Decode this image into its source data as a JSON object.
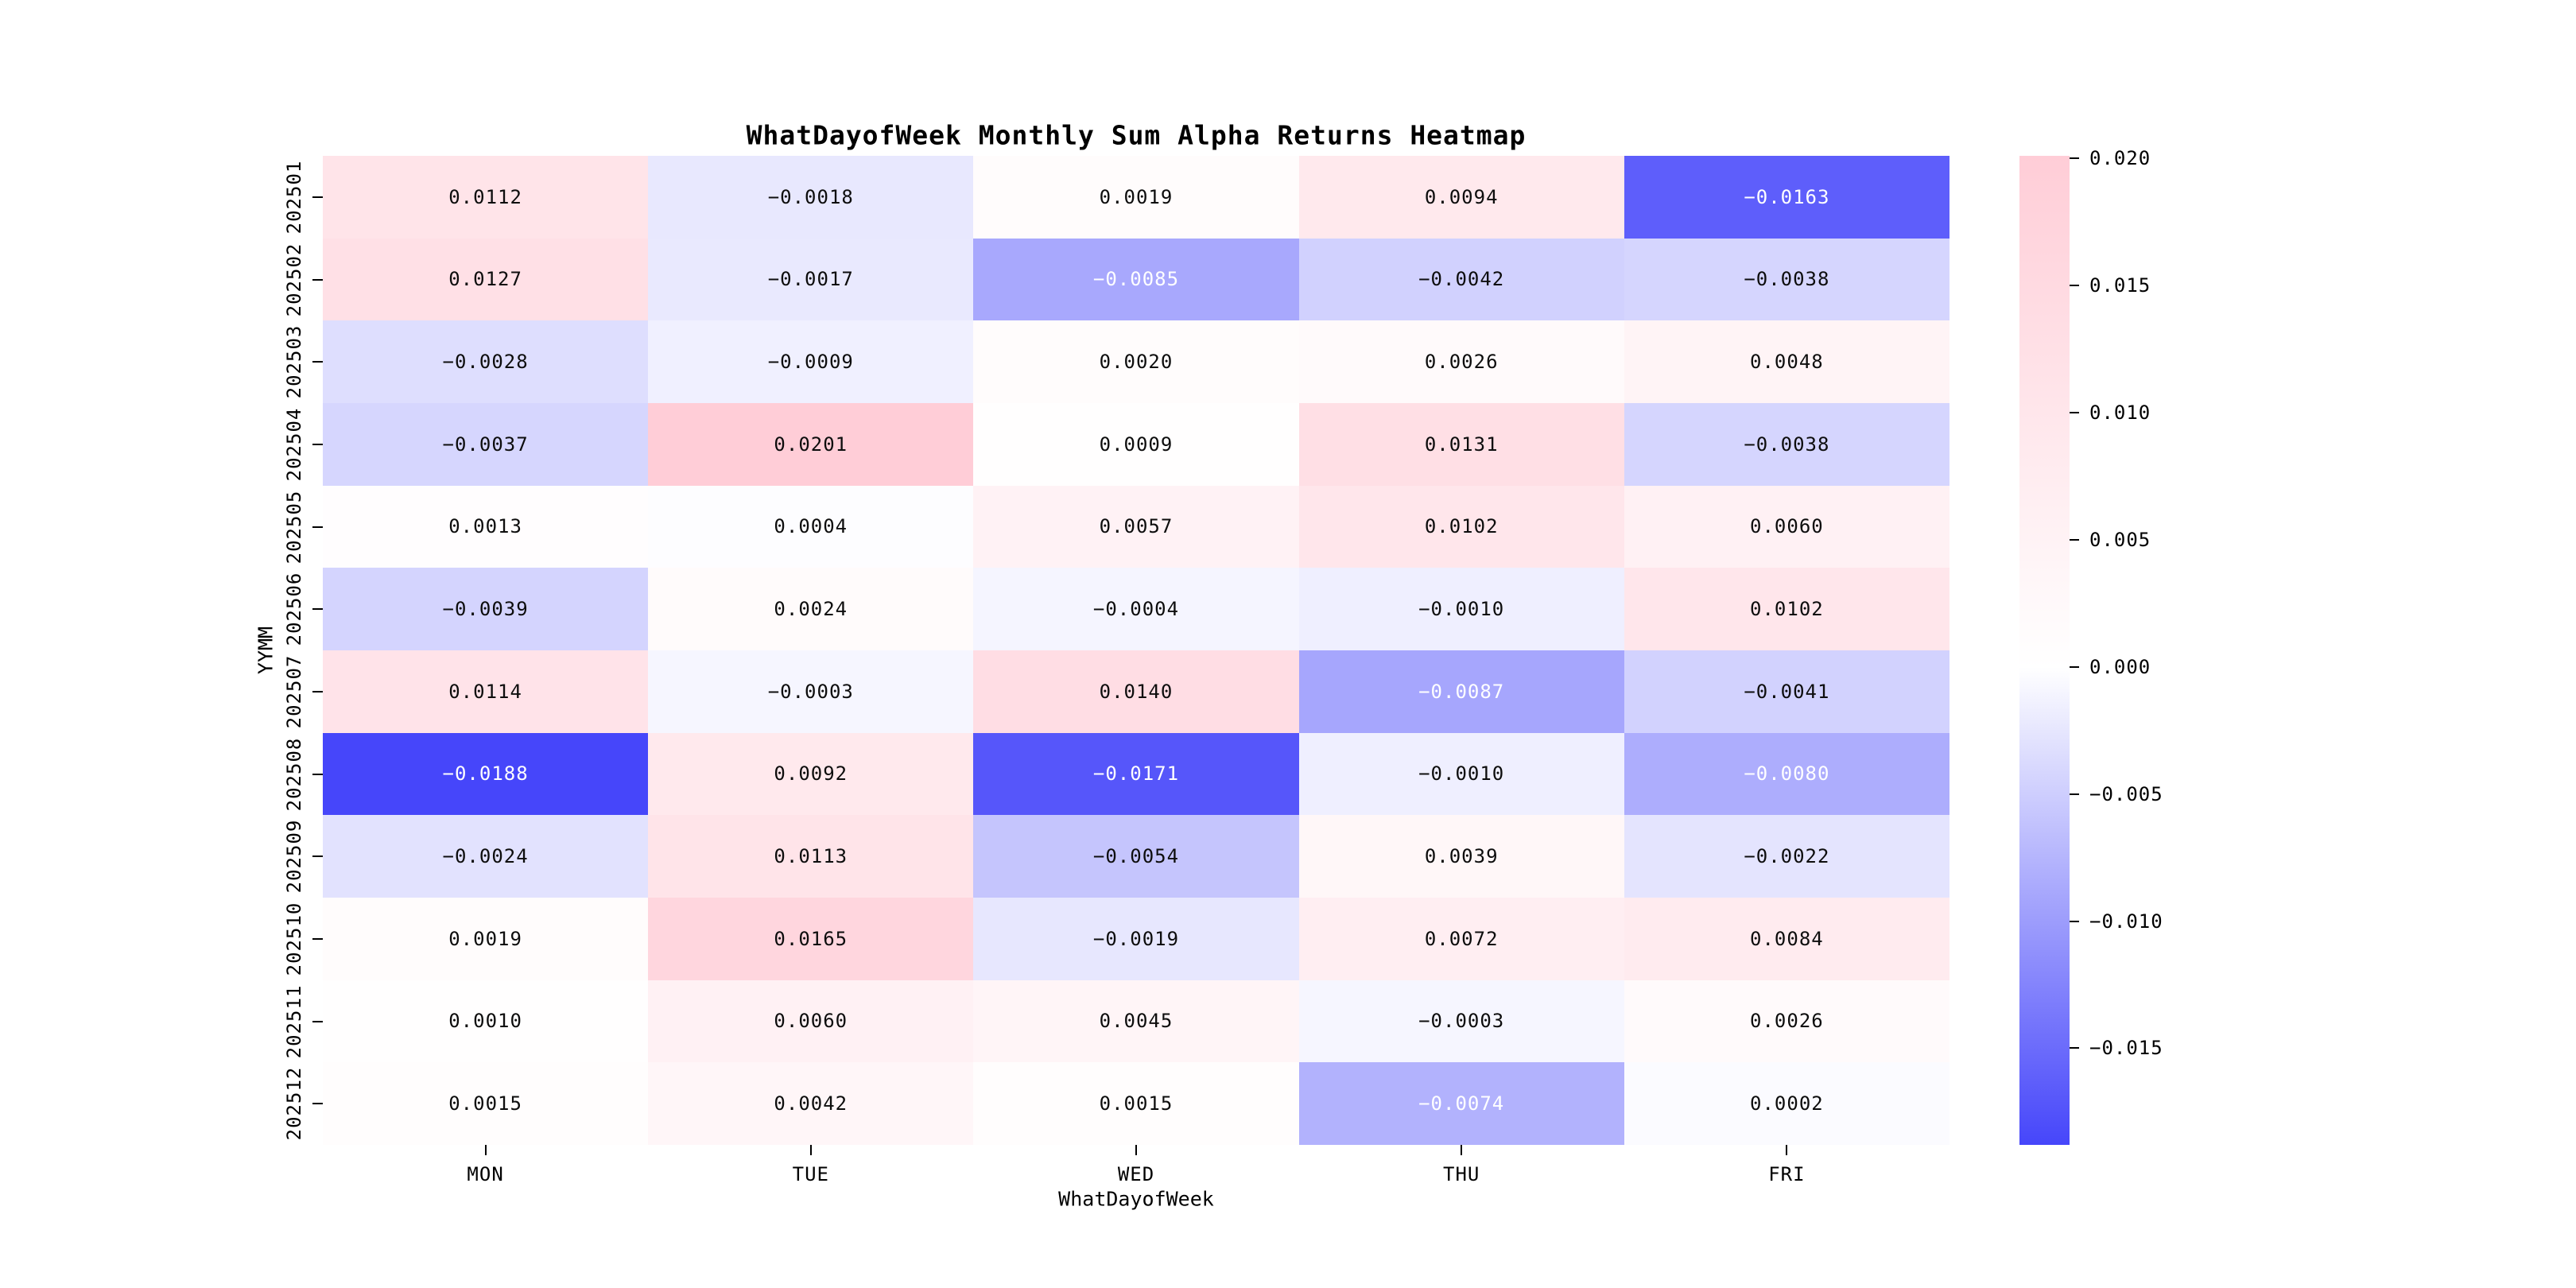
{
  "chart_data": {
    "type": "heatmap",
    "title": "WhatDayofWeek Monthly Sum Alpha Returns Heatmap",
    "xlabel": "WhatDayofWeek",
    "ylabel": "YYMM",
    "x_categories": [
      "MON",
      "TUE",
      "WED",
      "THU",
      "FRI"
    ],
    "y_categories": [
      "202501",
      "202502",
      "202503",
      "202504",
      "202505",
      "202506",
      "202507",
      "202508",
      "202509",
      "202510",
      "202511",
      "202512"
    ],
    "values": [
      [
        0.0112,
        -0.0018,
        0.0019,
        0.0094,
        -0.0163
      ],
      [
        0.0127,
        -0.0017,
        -0.0085,
        -0.0042,
        -0.0038
      ],
      [
        -0.0028,
        -0.0009,
        0.002,
        0.0026,
        0.0048
      ],
      [
        -0.0037,
        0.0201,
        0.0009,
        0.0131,
        -0.0038
      ],
      [
        0.0013,
        0.0004,
        0.0057,
        0.0102,
        0.006
      ],
      [
        -0.0039,
        0.0024,
        -0.0004,
        -0.001,
        0.0102
      ],
      [
        0.0114,
        -0.0003,
        0.014,
        -0.0087,
        -0.0041
      ],
      [
        -0.0188,
        0.0092,
        -0.0171,
        -0.001,
        -0.008
      ],
      [
        -0.0024,
        0.0113,
        -0.0054,
        0.0039,
        -0.0022
      ],
      [
        0.0019,
        0.0165,
        -0.0019,
        0.0072,
        0.0084
      ],
      [
        0.001,
        0.006,
        0.0045,
        -0.0003,
        0.0026
      ],
      [
        0.0015,
        0.0042,
        0.0015,
        -0.0074,
        0.0002
      ]
    ],
    "vmin": -0.0188,
    "vmax": 0.0201,
    "annot_decimals": 4,
    "annot_on": true,
    "grid": false,
    "colorbar": {
      "position": "right",
      "ticks": [
        0.02,
        0.015,
        0.01,
        0.005,
        0.0,
        -0.005,
        -0.01,
        -0.015
      ],
      "tick_decimals": 3
    },
    "colors": {
      "negative_end": "#4646fa",
      "center": "#ffffff",
      "positive_end": "#ffcdd7",
      "annot_dark": "#0d0d0d",
      "annot_light": "#ffffff",
      "tick_color": "#000000"
    }
  }
}
